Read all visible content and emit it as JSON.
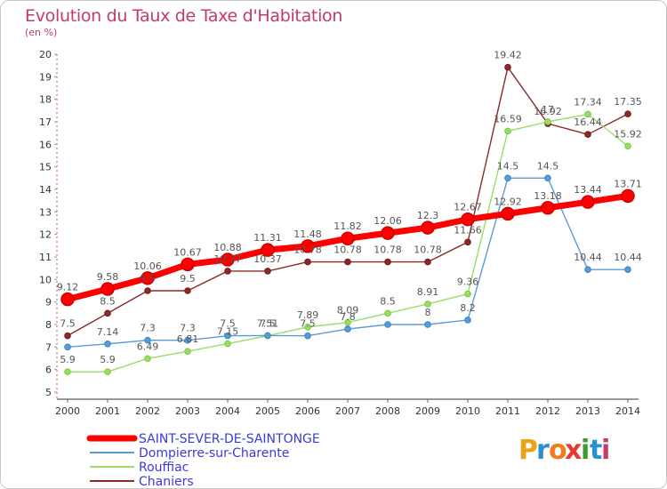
{
  "title": "Evolution du Taux de Taxe d'Habitation",
  "unit": "(en %)",
  "brand": {
    "letters": [
      "P",
      "r",
      "o",
      "x",
      "i",
      "t",
      "i"
    ],
    "colors": [
      "#e8a317",
      "#2b8fd0",
      "#f07c1b",
      "#e63b2e",
      "#3d9c2b",
      "#2b8fd0",
      "#c23b6a"
    ]
  },
  "chart_data": {
    "type": "line",
    "title": "Evolution du Taux de Taxe d'Habitation",
    "ylabel": "(en %)",
    "xlabel": "",
    "x": [
      "2000",
      "2001",
      "2002",
      "2003",
      "2004",
      "2005",
      "2006",
      "2007",
      "2008",
      "2009",
      "2010",
      "2011",
      "2012",
      "2013",
      "2014"
    ],
    "ylim": [
      5,
      20
    ],
    "yticks": [
      "5",
      "6",
      "7",
      "8",
      "9",
      "10",
      "11",
      "12",
      "13",
      "14",
      "15",
      "16",
      "17",
      "18",
      "19",
      "20"
    ],
    "grid": false,
    "legend_position": "bottom-left",
    "series": [
      {
        "name": "SAINT-SEVER-DE-SAINTONGE",
        "color": "#ff0000",
        "values": [
          9.12,
          9.58,
          10.06,
          10.67,
          10.88,
          11.31,
          11.48,
          11.82,
          12.06,
          12.3,
          12.67,
          12.92,
          13.18,
          13.44,
          13.71
        ],
        "labels": [
          "9.12",
          "9.58",
          "10.06",
          "10.67",
          "10.88",
          "11.31",
          "11.48",
          "11.82",
          "12.06",
          "12.3",
          "12.67",
          "12.92",
          "13.18",
          "13.44",
          "13.71"
        ]
      },
      {
        "name": "Dompierre-sur-Charente",
        "color": "#5b9bd5",
        "marker": "#3a83c6",
        "values": [
          7.0,
          7.14,
          7.3,
          7.3,
          7.5,
          7.51,
          7.5,
          7.8,
          8.0,
          8.0,
          8.2,
          14.5,
          14.5,
          10.44,
          10.44
        ],
        "labels": [
          "",
          "7.14",
          "7.3",
          "7.3",
          "7.5",
          "7.51",
          "7.5",
          "7.8",
          "",
          "8",
          "8.2",
          "14.5",
          "14.5",
          "10.44",
          "10.44"
        ]
      },
      {
        "name": "Rouffiac",
        "color": "#99dd66",
        "marker": "#7cc840",
        "values": [
          5.9,
          5.9,
          6.49,
          6.81,
          7.15,
          7.5,
          7.89,
          8.09,
          8.5,
          8.91,
          9.36,
          16.59,
          17.0,
          17.34,
          15.92
        ],
        "labels": [
          "5.9",
          "5.9",
          "6.49",
          "6.81",
          "7.15",
          "7.5",
          "7.89",
          "8.09",
          "8.5",
          "8.91",
          "9.36",
          "16.59",
          "17",
          "17.34",
          "15.92"
        ]
      },
      {
        "name": "Chaniers",
        "color": "#8b2a2a",
        "marker": "#6e1a1a",
        "values": [
          7.5,
          8.5,
          9.5,
          9.5,
          10.37,
          10.37,
          10.78,
          10.78,
          10.78,
          10.78,
          11.66,
          19.42,
          16.92,
          16.44,
          17.35
        ],
        "labels": [
          "7.5",
          "8.5",
          "9.5",
          "9.5",
          "10.37",
          "10.37",
          "10.78",
          "10.78",
          "10.78",
          "10.78",
          "11.66",
          "19.42",
          "16.92",
          "16.44",
          "17.35"
        ]
      }
    ]
  }
}
